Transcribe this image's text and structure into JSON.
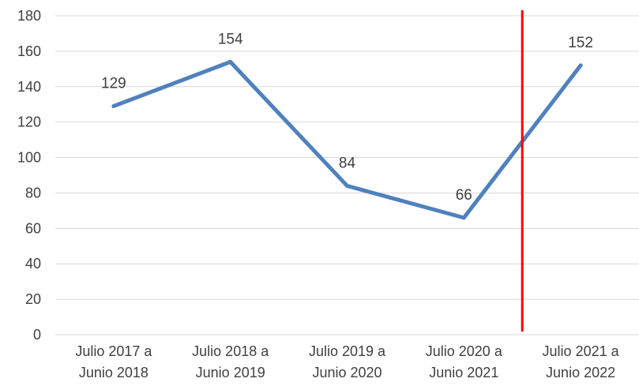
{
  "chart_data": {
    "type": "line",
    "categories": [
      [
        "Julio 2017 a",
        "Junio 2018"
      ],
      [
        "Julio 2018 a",
        "Junio 2019"
      ],
      [
        "Julio 2019 a",
        "Junio 2020"
      ],
      [
        "Julio 2020 a",
        "Junio 2021"
      ],
      [
        "Julio 2021 a",
        "Junio 2022"
      ]
    ],
    "series": [
      {
        "values": [
          129,
          154,
          84,
          66,
          152
        ],
        "data_labels": [
          "129",
          "154",
          "84",
          "66",
          "152"
        ]
      }
    ],
    "ylim": [
      0,
      180
    ],
    "yticks": [
      0,
      20,
      40,
      60,
      80,
      100,
      120,
      140,
      160,
      180
    ],
    "ytick_labels": [
      "0",
      "20",
      "40",
      "60",
      "80",
      "100",
      "120",
      "140",
      "160",
      "180"
    ],
    "grid": true,
    "line_color": "#4f81bd",
    "marker_line": {
      "between_categories": [
        3,
        4
      ],
      "color": "#ff0000"
    },
    "title": "",
    "xlabel": "",
    "ylabel": ""
  }
}
